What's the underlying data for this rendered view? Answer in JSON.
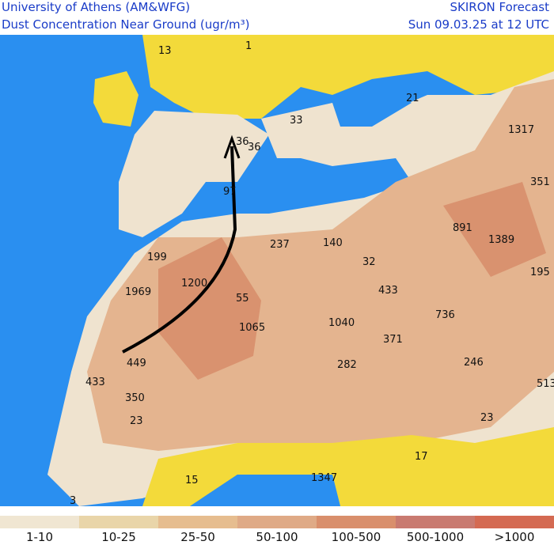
{
  "header": {
    "left": [
      "University of Athens (AM&WFG)",
      "Dust Concentration Near Ground (ugr/m³)"
    ],
    "right": [
      "SKIRON Forecast",
      "Sun 09.03.25 at 12 UTC"
    ]
  },
  "map_labels": [
    "13",
    "1",
    "21",
    "33",
    "1317",
    "36",
    "36",
    "97",
    "351",
    "237",
    "140",
    "891",
    "1389",
    "199",
    "1200",
    "32",
    "1969",
    "55",
    "433",
    "195",
    "736",
    "1065",
    "1040",
    "371",
    "449",
    "246",
    "282",
    "433",
    "513",
    "350",
    "23",
    "23",
    "17",
    "15",
    "1347",
    "3"
  ],
  "legend": [
    {
      "label": "1-10",
      "color": "#f0e6d2"
    },
    {
      "label": "10-25",
      "color": "#e9d5a9"
    },
    {
      "label": "25-50",
      "color": "#e6bd8f"
    },
    {
      "label": "50-100",
      "color": "#dfaa86"
    },
    {
      "label": "100-500",
      "color": "#d98f6c"
    },
    {
      "label": "500-1000",
      "color": "#c97a70"
    },
    {
      "label": ">1000",
      "color": "#d46a52"
    }
  ]
}
